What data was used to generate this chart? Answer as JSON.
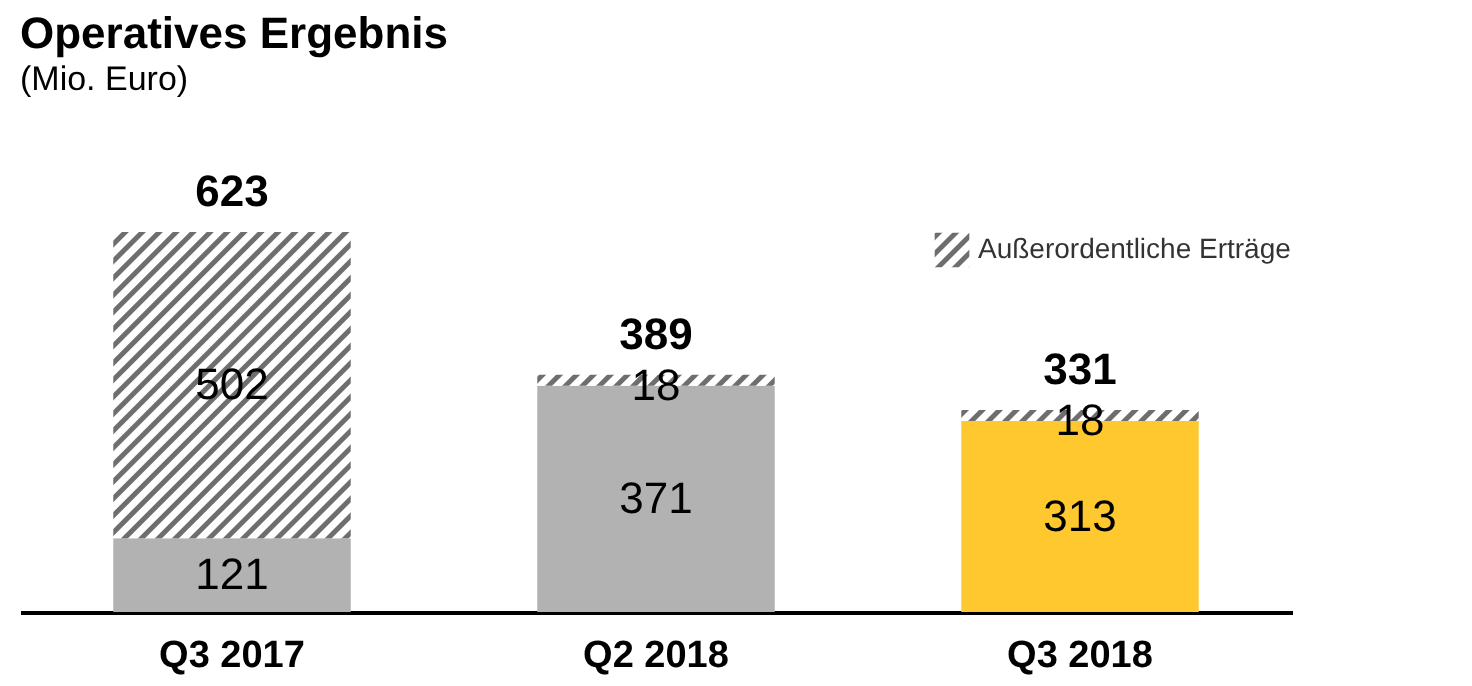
{
  "chart_data": {
    "type": "bar",
    "title": "Operatives Ergebnis",
    "subtitle": "(Mio. Euro)",
    "categories": [
      "Q3 2017",
      "Q2 2018",
      "Q3 2018"
    ],
    "stacked": true,
    "series": [
      {
        "colors": [
          "#b2b2b2",
          "#b2b2b2",
          "#ffc82e"
        ],
        "values": [
          121,
          371,
          313
        ]
      },
      {
        "name": "Außerordentliche Erträge",
        "color": "#6e6e6e",
        "values": [
          502,
          18,
          18
        ]
      }
    ],
    "data_labels": true,
    "totals": [
      "623",
      "389",
      "331"
    ],
    "legend": "top right",
    "tick_labels": "x"
  }
}
